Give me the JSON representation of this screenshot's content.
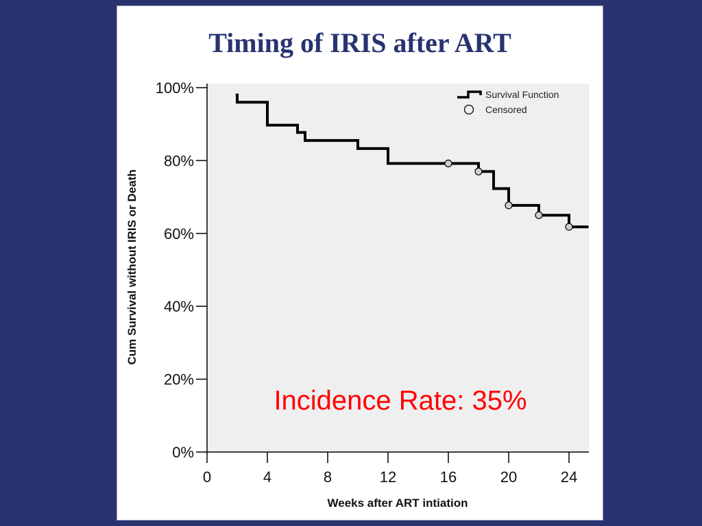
{
  "slide": {
    "title": "Timing of IRIS after ART",
    "background_color": "#283370",
    "title_color": "#283370",
    "annotation": "Incidence Rate: 35%",
    "annotation_color": "#ff0000"
  },
  "chart_data": {
    "type": "line",
    "style": "step",
    "xlabel": "Weeks after ART intiation",
    "ylabel": "Cum Survival without IRIS or Death",
    "xlim": [
      0,
      25.3
    ],
    "ylim": [
      0,
      100
    ],
    "x_ticks": [
      0,
      4,
      8,
      12,
      16,
      20,
      24
    ],
    "y_ticks": [
      "0%",
      "20%",
      "40%",
      "60%",
      "80%",
      "100%"
    ],
    "y_tick_values": [
      0,
      20,
      40,
      60,
      80,
      100
    ],
    "grid": false,
    "plot_background": "#efefef",
    "legend_position": "top-right",
    "series": [
      {
        "name": "Survival Function",
        "x": [
          1.9,
          2.0,
          4.0,
          6.0,
          6.5,
          10.0,
          12.0,
          18.0,
          19.0,
          20.0,
          22.0,
          24.0,
          25.3
        ],
        "y": [
          98,
          96,
          89.7,
          87.7,
          85.5,
          83.3,
          79.2,
          77.0,
          72.3,
          67.7,
          65.0,
          61.8,
          61.8
        ]
      },
      {
        "name": "Censored",
        "x": [
          16.0,
          18.0,
          20.0,
          22.0,
          24.0
        ],
        "y": [
          79.2,
          77.0,
          67.7,
          65.0,
          61.8
        ]
      }
    ]
  }
}
